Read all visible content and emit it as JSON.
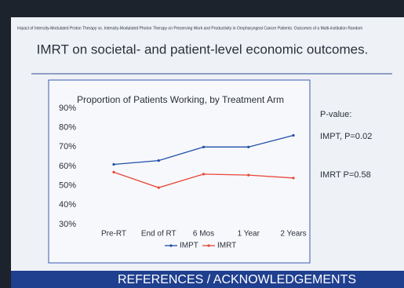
{
  "header": {
    "caption": "Impact of Intensity-Modulated Proton Therapy vs. Intensity-Modulated Photon Therapy on Preserving Work and Productivity in Oropharyngeal Cancer Patients: Outcomes of a Multi-institution Random",
    "heading": "IMRT on societal- and patient-level economic outcomes."
  },
  "chart_data": {
    "type": "line",
    "title": "Proportion of Patients Working, by Treatment Arm",
    "categories": [
      "Pre-RT",
      "End of RT",
      "6 Mos",
      "1 Year",
      "2 Years"
    ],
    "series": [
      {
        "name": "IMPT",
        "color": "#1f4fa8",
        "values": [
          61,
          63,
          70,
          70,
          76
        ]
      },
      {
        "name": "IMRT",
        "color": "#e8463a",
        "values": [
          57,
          49,
          56,
          55.5,
          54
        ]
      }
    ],
    "ylim": [
      30,
      90
    ],
    "yticks": [
      {
        "value": 30,
        "label": "30%"
      },
      {
        "value": 40,
        "label": "40%"
      },
      {
        "value": 50,
        "label": "50%"
      },
      {
        "value": 60,
        "label": "60%"
      },
      {
        "value": 70,
        "label": "70%"
      },
      {
        "value": 80,
        "label": "80%"
      },
      {
        "value": 90,
        "label": "90%"
      }
    ],
    "grid": false,
    "legend": "bottom"
  },
  "annotations": {
    "pvalue_title": "P-value:",
    "impt": "IMPT, P=0.02",
    "imrt": "IMRT P=0.58"
  },
  "footer": {
    "text": "REFERENCES / ACKNOWLEDGEMENTS"
  }
}
